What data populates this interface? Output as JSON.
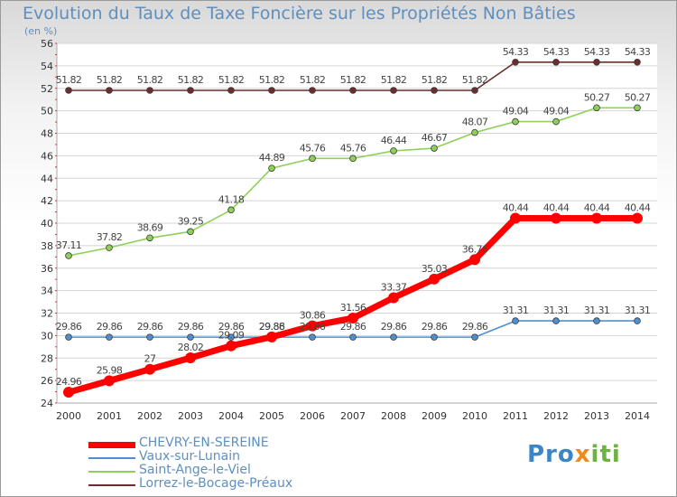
{
  "header": {
    "title": "Evolution du Taux de Taxe Foncière sur les Propriétés Non Bâties",
    "unit": "(en %)"
  },
  "logo": {
    "text": "Proxiti"
  },
  "chart_data": {
    "type": "line",
    "title": "Evolution du Taux de Taxe Foncière sur les Propriétés Non Bâties",
    "ylabel": "(en %)",
    "xlabel": "",
    "ylim": [
      24,
      56
    ],
    "ytick_step": 2,
    "grid": "horizontal",
    "legend_position": "bottom-left",
    "x": [
      "2000",
      "2001",
      "2002",
      "2003",
      "2004",
      "2005",
      "2006",
      "2007",
      "2008",
      "2009",
      "2010",
      "2011",
      "2012",
      "2013",
      "2014"
    ],
    "series": [
      {
        "name": "CHEVRY-EN-SEREINE",
        "color": "#ff0000",
        "values": [
          24.96,
          25.98,
          27,
          28.02,
          29.09,
          29.88,
          30.86,
          31.56,
          33.37,
          35.03,
          36.76,
          40.44,
          40.44,
          40.44,
          40.44
        ],
        "labels": [
          "24.96",
          "25.98",
          "27",
          "28.02",
          "29.09",
          "29.88",
          "30.86",
          "31.56",
          "33.37",
          "35.03",
          "36.76",
          "40.44",
          "40.44",
          "40.44",
          "40.44"
        ]
      },
      {
        "name": "Vaux-sur-Lunain",
        "color": "#4f8fd0",
        "values": [
          29.86,
          29.86,
          29.86,
          29.86,
          29.86,
          29.86,
          29.86,
          29.86,
          29.86,
          29.86,
          29.86,
          31.31,
          31.31,
          31.31,
          31.31
        ],
        "labels": [
          "29.86",
          "29.86",
          "29.86",
          "29.86",
          "29.86",
          "29.86",
          "29.86",
          "29.86",
          "29.86",
          "29.86",
          "29.86",
          "31.31",
          "31.31",
          "31.31",
          "31.31"
        ]
      },
      {
        "name": "Saint-Ange-le-Viel",
        "color": "#8fd05a",
        "values": [
          37.11,
          37.82,
          38.69,
          39.25,
          41.18,
          44.89,
          45.76,
          45.76,
          46.44,
          46.67,
          48.07,
          49.04,
          49.04,
          50.27,
          50.27
        ],
        "labels": [
          "37.11",
          "37.82",
          "38.69",
          "39.25",
          "41.18",
          "44.89",
          "45.76",
          "45.76",
          "46.44",
          "46.67",
          "48.07",
          "49.04",
          "49.04",
          "50.27",
          "50.27"
        ]
      },
      {
        "name": "Lorrez-le-Bocage-Préaux",
        "color": "#6b2d2d",
        "values": [
          51.82,
          51.82,
          51.82,
          51.82,
          51.82,
          51.82,
          51.82,
          51.82,
          51.82,
          51.82,
          51.82,
          54.33,
          54.33,
          54.33,
          54.33
        ],
        "labels": [
          "51.82",
          "51.82",
          "51.82",
          "51.82",
          "51.82",
          "51.82",
          "51.82",
          "51.82",
          "51.82",
          "51.82",
          "51.82",
          "54.33",
          "54.33",
          "54.33",
          "54.33"
        ]
      }
    ]
  }
}
